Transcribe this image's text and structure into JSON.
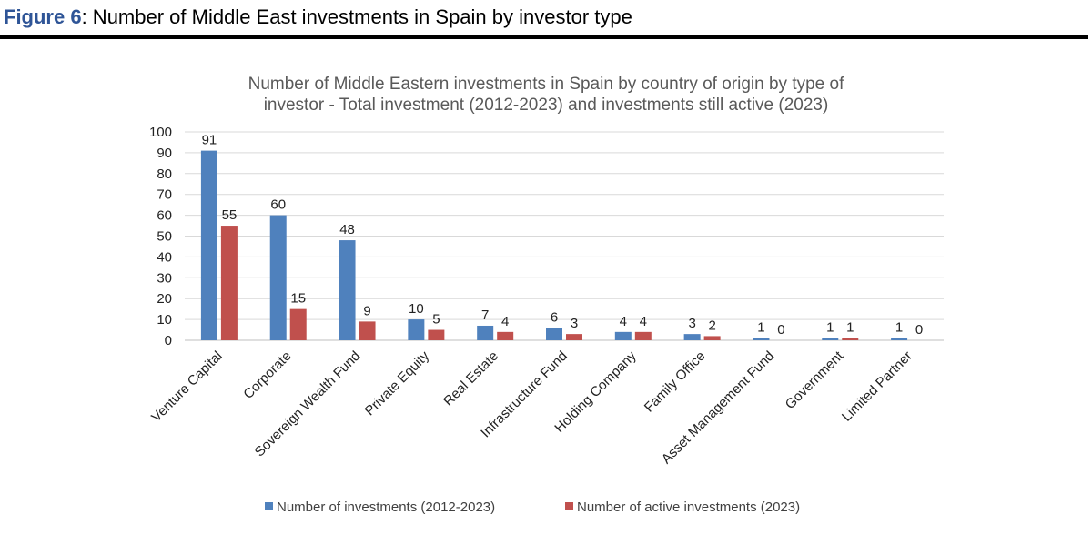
{
  "figure": {
    "label": "Figure 6",
    "title_rest": ": Number of Middle East investments in Spain by investor type"
  },
  "chart_data": {
    "type": "bar",
    "title_lines": [
      "Number of Middle Eastern investments in Spain by country of origin by type of",
      "investor - Total investment (2012-2023) and investments still active (2023)"
    ],
    "categories": [
      "Venture Capital",
      "Corporate",
      "Sovereign Wealth Fund",
      "Private Equity",
      "Real Estate",
      "Infrastructure Fund",
      "Holding Company",
      "Family Office",
      "Asset Management Fund",
      "Government",
      "Limited Partner"
    ],
    "series": [
      {
        "name": "Number of investments (2012-2023)",
        "color": "#4f81bd",
        "values": [
          91,
          60,
          48,
          10,
          7,
          6,
          4,
          3,
          1,
          1,
          1
        ]
      },
      {
        "name": "Number of active investments (2023)",
        "color": "#c0504d",
        "values": [
          55,
          15,
          9,
          5,
          4,
          3,
          4,
          2,
          0,
          1,
          0
        ]
      }
    ],
    "ylim": [
      0,
      100
    ],
    "yticks": [
      0,
      10,
      20,
      30,
      40,
      50,
      60,
      70,
      80,
      90,
      100
    ],
    "grid": true,
    "legend_position": "bottom"
  }
}
